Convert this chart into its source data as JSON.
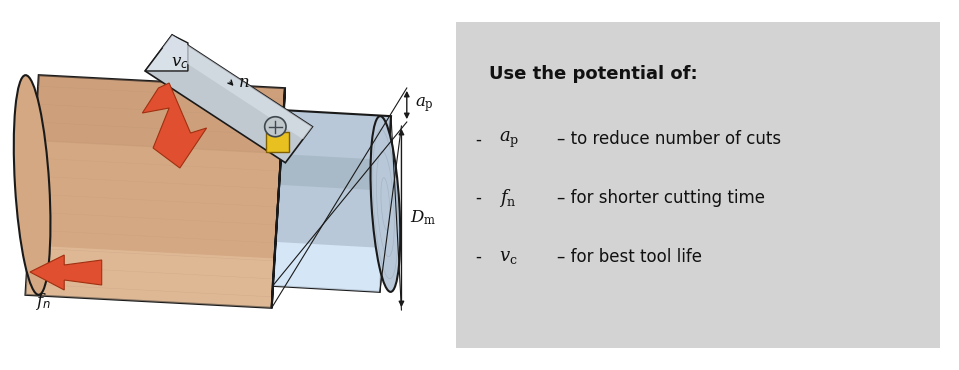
{
  "bg_color": "#ffffff",
  "panel_bg": "#d3d3d3",
  "title_text": "Use the potential of:",
  "title_fontsize": 13,
  "text_fontsize": 12,
  "line1_suffix": "– to reduce number of cuts",
  "line2_suffix": "– for shorter cutting time",
  "line3_suffix": "– for best tool life",
  "workpiece_color": "#d4a882",
  "workpiece_shade": "#c09070",
  "workpiece_light": "#e8c8a8",
  "workpiece_edge": "#1a1a1a",
  "machined_color": "#b8c8d8",
  "machined_light": "#ddeeff",
  "machined_mid": "#8899aa",
  "machined_dark": "#6677aa",
  "machined_edge": "#1a1a1a",
  "insert_color": "#e8c020",
  "insert_edge": "#806000",
  "tool_color": "#c0c8d0",
  "tool_light": "#d8dfe8",
  "tool_dark": "#909aa0",
  "tool_edge": "#1a1a1a",
  "arrow_fill": "#e05030",
  "arrow_edge": "#a03010",
  "dim_color": "#1a1a1a"
}
